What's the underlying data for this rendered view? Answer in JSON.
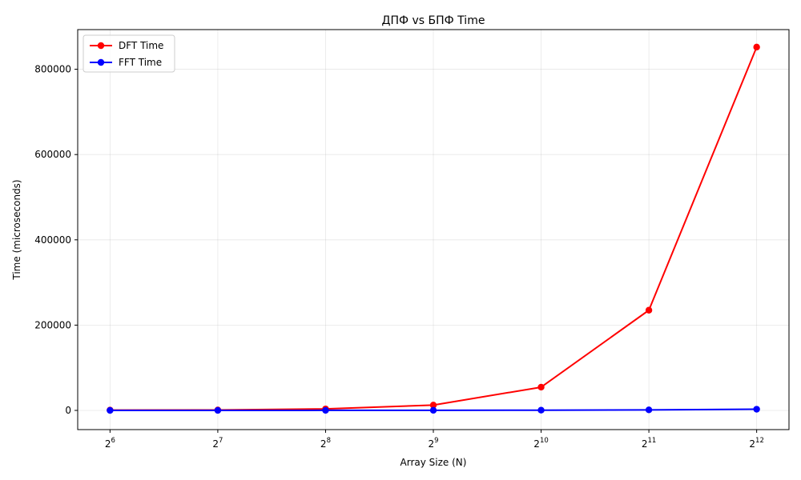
{
  "chart_data": {
    "type": "line",
    "title": "ДПФ vs БПФ Time",
    "xlabel": "Array Size (N)",
    "ylabel": "Time (microseconds)",
    "x_scale": "log2",
    "x": [
      64,
      128,
      256,
      512,
      1024,
      2048,
      4096
    ],
    "x_tick_labels": [
      {
        "base": "2",
        "exp": "6"
      },
      {
        "base": "2",
        "exp": "7"
      },
      {
        "base": "2",
        "exp": "8"
      },
      {
        "base": "2",
        "exp": "9"
      },
      {
        "base": "2",
        "exp": "10"
      },
      {
        "base": "2",
        "exp": "11"
      },
      {
        "base": "2",
        "exp": "12"
      }
    ],
    "y_ticks": [
      0,
      200000,
      400000,
      600000,
      800000
    ],
    "ylim": [
      -45000,
      893000
    ],
    "grid": true,
    "legend_position": "upper-left",
    "series": [
      {
        "name": "DFT Time",
        "color": "#ff0000",
        "values": [
          800,
          1000,
          3500,
          12500,
          54500,
          235000,
          852000
        ]
      },
      {
        "name": "FFT Time",
        "color": "#0000ff",
        "values": [
          30,
          70,
          150,
          300,
          600,
          1300,
          2800
        ]
      }
    ]
  }
}
